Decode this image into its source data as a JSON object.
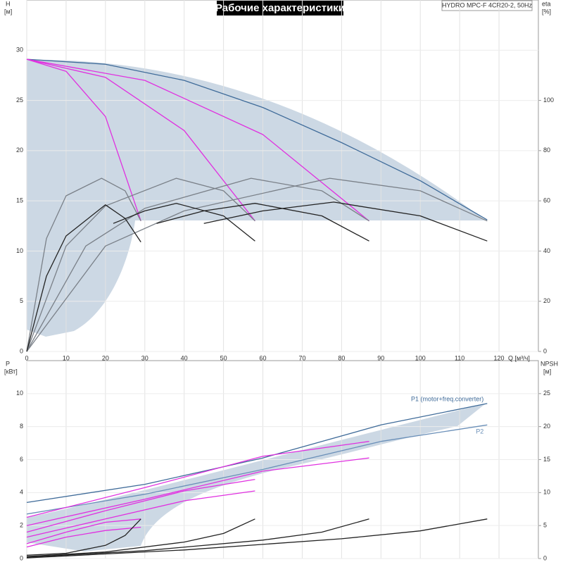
{
  "chart_data": [
    {
      "type": "line",
      "title": "Рабочие характеристики",
      "subtitle": "HYDRO MPC-F 4CR20-2, 50Hz",
      "y_label": [
        "H",
        "[м]"
      ],
      "y2_label": [
        "eta",
        "[%]"
      ],
      "x_label": "Q [м³/ч]",
      "xlim": [
        0,
        130
      ],
      "xticks": [
        0,
        10,
        20,
        30,
        40,
        50,
        60,
        70,
        80,
        90,
        100,
        110,
        120
      ],
      "ylim": [
        0,
        35
      ],
      "yticks": [
        0,
        5,
        10,
        15,
        20,
        25,
        30
      ],
      "y2lim": [
        0,
        140
      ],
      "y2ticks": [
        0,
        20,
        40,
        60,
        80,
        100
      ],
      "grid": true,
      "show_xtick_labels": true,
      "series": [
        {
          "color": "#3f6b99",
          "x": [
            0,
            20,
            40,
            60,
            80,
            100,
            117
          ],
          "values": [
            29.1,
            28.6,
            27.0,
            24.3,
            20.8,
            17.0,
            13.1
          ]
        },
        {
          "color": "#e030e0",
          "x": [
            0,
            10,
            20,
            29
          ],
          "values": [
            29.1,
            27.9,
            23.4,
            13.0
          ]
        },
        {
          "color": "#e030e0",
          "x": [
            0,
            20,
            40,
            58
          ],
          "values": [
            29.1,
            27.3,
            22.0,
            13.0
          ]
        },
        {
          "color": "#e030e0",
          "x": [
            0,
            30,
            60,
            87
          ],
          "values": [
            29.1,
            27.0,
            21.6,
            13.0
          ]
        },
        {
          "color": "#7a8088",
          "axis": "y2",
          "x": [
            0,
            5,
            10,
            19,
            25,
            29
          ],
          "values": [
            0,
            45,
            62,
            69,
            64,
            52
          ]
        },
        {
          "color": "#7a8088",
          "axis": "y2",
          "x": [
            0,
            10,
            20,
            38,
            50,
            58
          ],
          "values": [
            0,
            42,
            58,
            69,
            64,
            52
          ]
        },
        {
          "color": "#7a8088",
          "axis": "y2",
          "x": [
            0,
            15,
            30,
            57,
            75,
            87
          ],
          "values": [
            0,
            42,
            57,
            69,
            64,
            52
          ]
        },
        {
          "color": "#7a8088",
          "axis": "y2",
          "x": [
            0,
            20,
            40,
            77,
            100,
            117
          ],
          "values": [
            0,
            42,
            56,
            69,
            64,
            52
          ]
        },
        {
          "color": "#222222",
          "axis": "y2",
          "x": [
            0,
            5,
            10,
            20,
            25,
            29
          ],
          "values": [
            0,
            30,
            46,
            58.4,
            53,
            43.6
          ]
        },
        {
          "color": "#222222",
          "axis": "y2",
          "x": [
            22,
            30,
            38,
            50,
            58
          ],
          "values": [
            51,
            56,
            59,
            54,
            44
          ]
        },
        {
          "color": "#222222",
          "axis": "y2",
          "x": [
            33,
            45,
            58,
            75,
            87
          ],
          "values": [
            51,
            56,
            59,
            54,
            44
          ]
        },
        {
          "color": "#222222",
          "axis": "y2",
          "x": [
            45,
            60,
            78,
            100,
            117
          ],
          "values": [
            51,
            56,
            59.5,
            54,
            44
          ]
        }
      ]
    },
    {
      "type": "line",
      "y_label": [
        "P",
        "[кВт]"
      ],
      "y2_label": [
        "NPSH",
        "[м]"
      ],
      "xlim": [
        0,
        130
      ],
      "xticks": [
        0,
        10,
        20,
        30,
        40,
        50,
        60,
        70,
        80,
        90,
        100,
        110,
        120
      ],
      "ylim": [
        0,
        12
      ],
      "yticks": [
        0,
        2,
        4,
        6,
        8,
        10
      ],
      "y2lim": [
        0,
        30
      ],
      "y2ticks": [
        0,
        5,
        10,
        15,
        20,
        25
      ],
      "grid": true,
      "show_xtick_labels": false,
      "series": [
        {
          "color": "#3f6b99",
          "label": "P1 (motor+freq.converter)",
          "x": [
            0,
            30,
            60,
            90,
            117
          ],
          "values": [
            3.4,
            4.5,
            6.1,
            8.1,
            9.4
          ]
        },
        {
          "color": "#6a8fb8",
          "label": "P2",
          "x": [
            0,
            30,
            60,
            90,
            117
          ],
          "values": [
            2.7,
            3.9,
            5.4,
            7.1,
            8.1
          ]
        },
        {
          "color": "#e030e0",
          "x": [
            0,
            30,
            60,
            87
          ],
          "values": [
            2.5,
            4.3,
            6.2,
            7.1
          ]
        },
        {
          "color": "#e030e0",
          "x": [
            0,
            30,
            60,
            87
          ],
          "values": [
            2.0,
            3.6,
            5.3,
            6.1
          ]
        },
        {
          "color": "#e030e0",
          "x": [
            0,
            20,
            40,
            58
          ],
          "values": [
            1.6,
            2.9,
            4.1,
            4.8
          ]
        },
        {
          "color": "#e030e0",
          "x": [
            0,
            20,
            40,
            58
          ],
          "values": [
            1.3,
            2.4,
            3.5,
            4.1
          ]
        },
        {
          "color": "#e030e0",
          "x": [
            0,
            10,
            20,
            29
          ],
          "values": [
            0.9,
            1.6,
            2.2,
            2.4
          ]
        },
        {
          "color": "#e030e0",
          "x": [
            0,
            10,
            20,
            29
          ],
          "values": [
            0.7,
            1.3,
            1.7,
            1.9
          ]
        },
        {
          "color": "#222222",
          "axis": "y2",
          "x": [
            0,
            10,
            20,
            25,
            29
          ],
          "values": [
            0.5,
            0.8,
            2.0,
            3.5,
            6.0
          ]
        },
        {
          "color": "#222222",
          "axis": "y2",
          "x": [
            0,
            20,
            40,
            50,
            58
          ],
          "values": [
            0.3,
            1.0,
            2.5,
            3.8,
            6.0
          ]
        },
        {
          "color": "#222222",
          "axis": "y2",
          "x": [
            0,
            30,
            60,
            75,
            87
          ],
          "values": [
            0.2,
            1.2,
            2.8,
            4.0,
            6.0
          ]
        },
        {
          "color": "#222222",
          "axis": "y2",
          "x": [
            0,
            40,
            80,
            100,
            117
          ],
          "values": [
            0.1,
            1.3,
            3.0,
            4.2,
            6.0
          ]
        }
      ]
    }
  ]
}
